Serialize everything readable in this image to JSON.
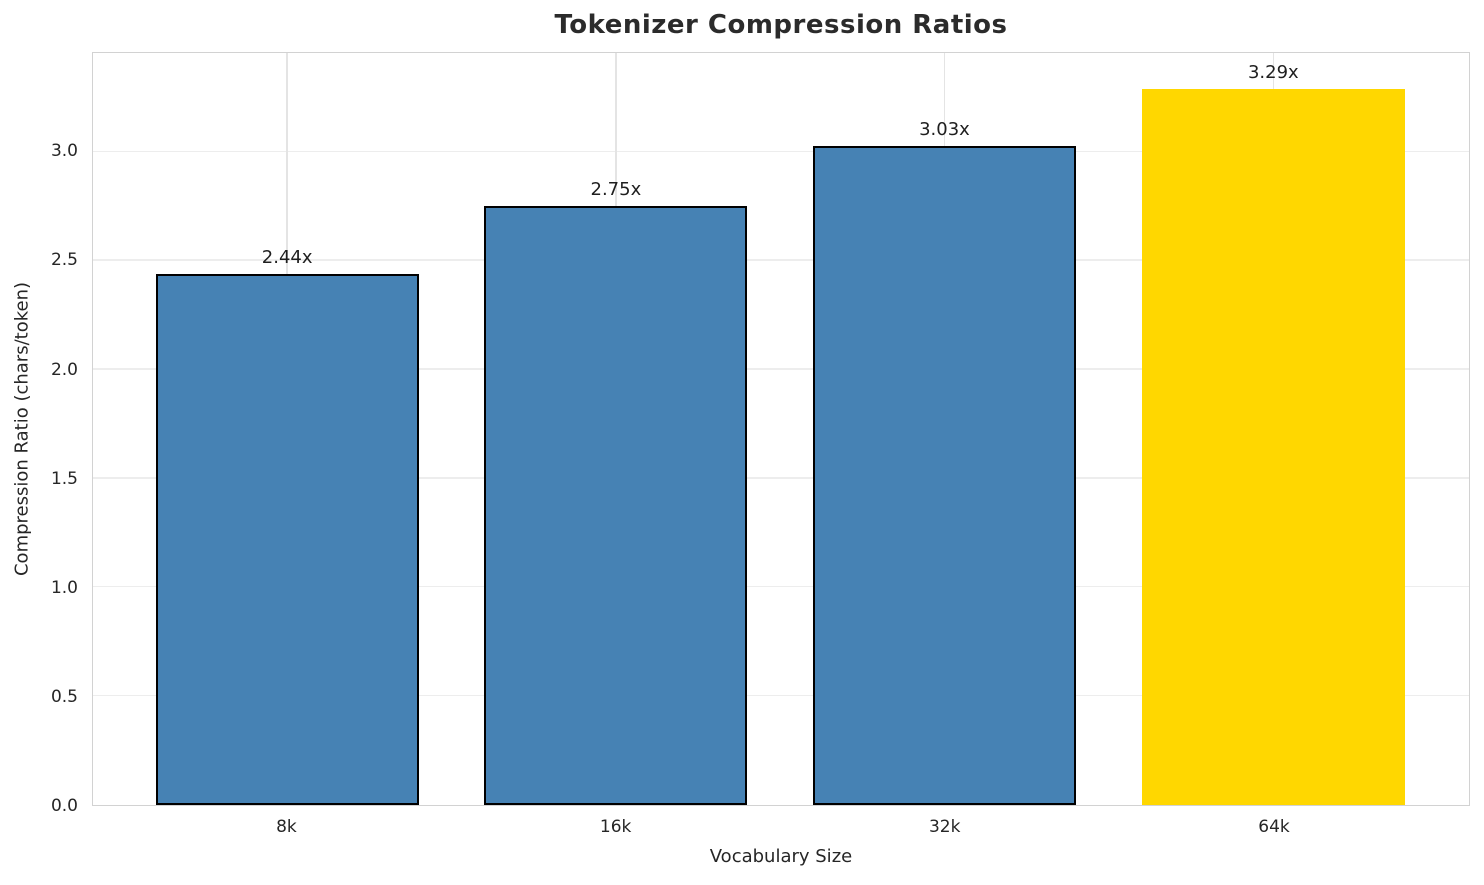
{
  "chart_data": {
    "type": "bar",
    "title": "Tokenizer Compression Ratios",
    "xlabel": "Vocabulary Size",
    "ylabel": "Compression Ratio (chars/token)",
    "categories": [
      "8k",
      "16k",
      "32k",
      "64k"
    ],
    "values": [
      2.44,
      2.75,
      3.03,
      3.29
    ],
    "bar_labels": [
      "2.44x",
      "2.75x",
      "3.03x",
      "3.29x"
    ],
    "bar_colors": [
      "#4682B4",
      "#4682B4",
      "#4682B4",
      "#FFD700"
    ],
    "bar_edge_colors": [
      "#000000",
      "#000000",
      "#000000",
      "none"
    ],
    "ylim": [
      0,
      3.455
    ],
    "yticks": [
      0.0,
      0.5,
      1.0,
      1.5,
      2.0,
      2.5,
      3.0
    ],
    "ytick_labels": [
      "0.0",
      "0.5",
      "1.0",
      "1.5",
      "2.0",
      "2.5",
      "3.0"
    ],
    "grid": true,
    "legend": false,
    "colors": {
      "bar_default": "#4682B4",
      "bar_highlight": "#FFD700",
      "bar_edge": "#000000",
      "grid_line": "#ededed",
      "spine": "#d2d2d2",
      "text": "#262626",
      "title_text": "#2b2b2b"
    }
  }
}
